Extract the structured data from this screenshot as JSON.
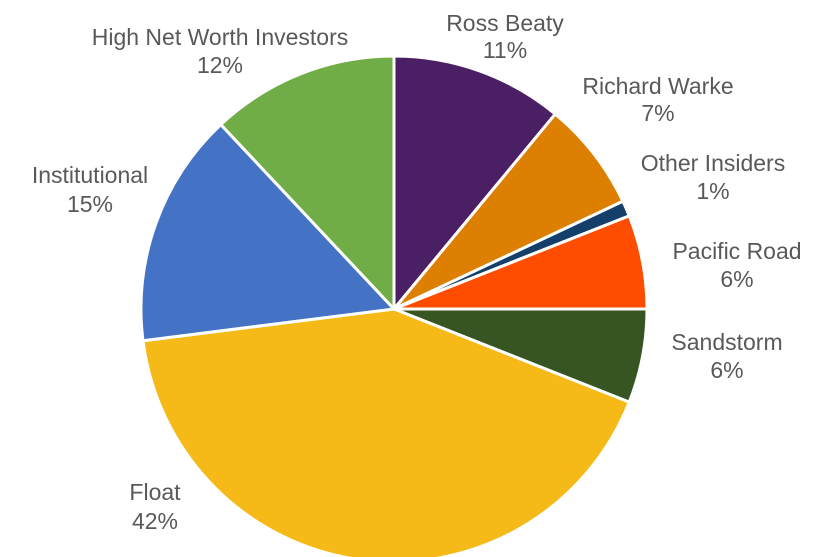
{
  "chart_data": {
    "type": "pie",
    "title": "",
    "legend": "none",
    "label_format": "category name above percentage",
    "start_angle_deg": 0,
    "direction": "clockwise",
    "slices": [
      {
        "name": "Ross Beaty",
        "value": 11,
        "label": "11%",
        "color": "#4b1f63"
      },
      {
        "name": "Richard Warke",
        "value": 7,
        "label": "7%",
        "color": "#dd7f00"
      },
      {
        "name": "Other Insiders",
        "value": 1,
        "label": "1%",
        "color": "#143f6b"
      },
      {
        "name": "Pacific Road",
        "value": 6,
        "label": "6%",
        "color": "#ff4d00"
      },
      {
        "name": "Sandstorm",
        "value": 6,
        "label": "6%",
        "color": "#365522"
      },
      {
        "name": "Float",
        "value": 42,
        "label": "42%",
        "color": "#f5b918"
      },
      {
        "name": "Institutional",
        "value": 15,
        "label": "15%",
        "color": "#4472c4"
      },
      {
        "name": "High Net Worth Investors",
        "value": 12,
        "label": "12%",
        "color": "#70ad47"
      }
    ]
  }
}
